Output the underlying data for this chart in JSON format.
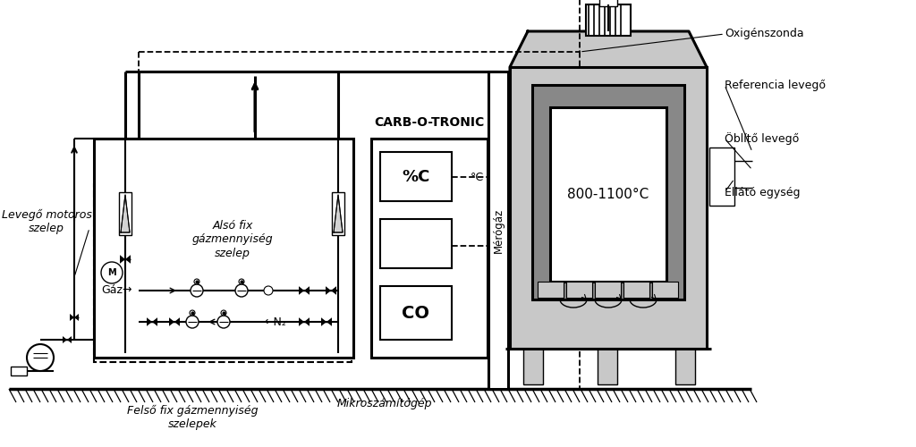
{
  "bg_color": "#ffffff",
  "labels": {
    "levego_motoros": "Levegő motoros\nszelep",
    "also_fix": "Alsó fix\ngázmennyiség\nszelep",
    "gaz": "Gáz→",
    "n2": "←N₂",
    "felso_fix": "Felső fix gázmennyiség\nszelepek",
    "mikroszamitogep": "Mikroszámítógép",
    "carb": "CARB-O-TRONIC",
    "percent_c": "%C",
    "co": "CO",
    "merogaz": "Mérógáz",
    "celsius": "°C",
    "temp_range": "800-1100°C",
    "oxigen": "Ox igénszonda",
    "referencia": "Referencia levegő",
    "oblito": "Öblítő levegő",
    "ellato": "Ellátó egység"
  }
}
